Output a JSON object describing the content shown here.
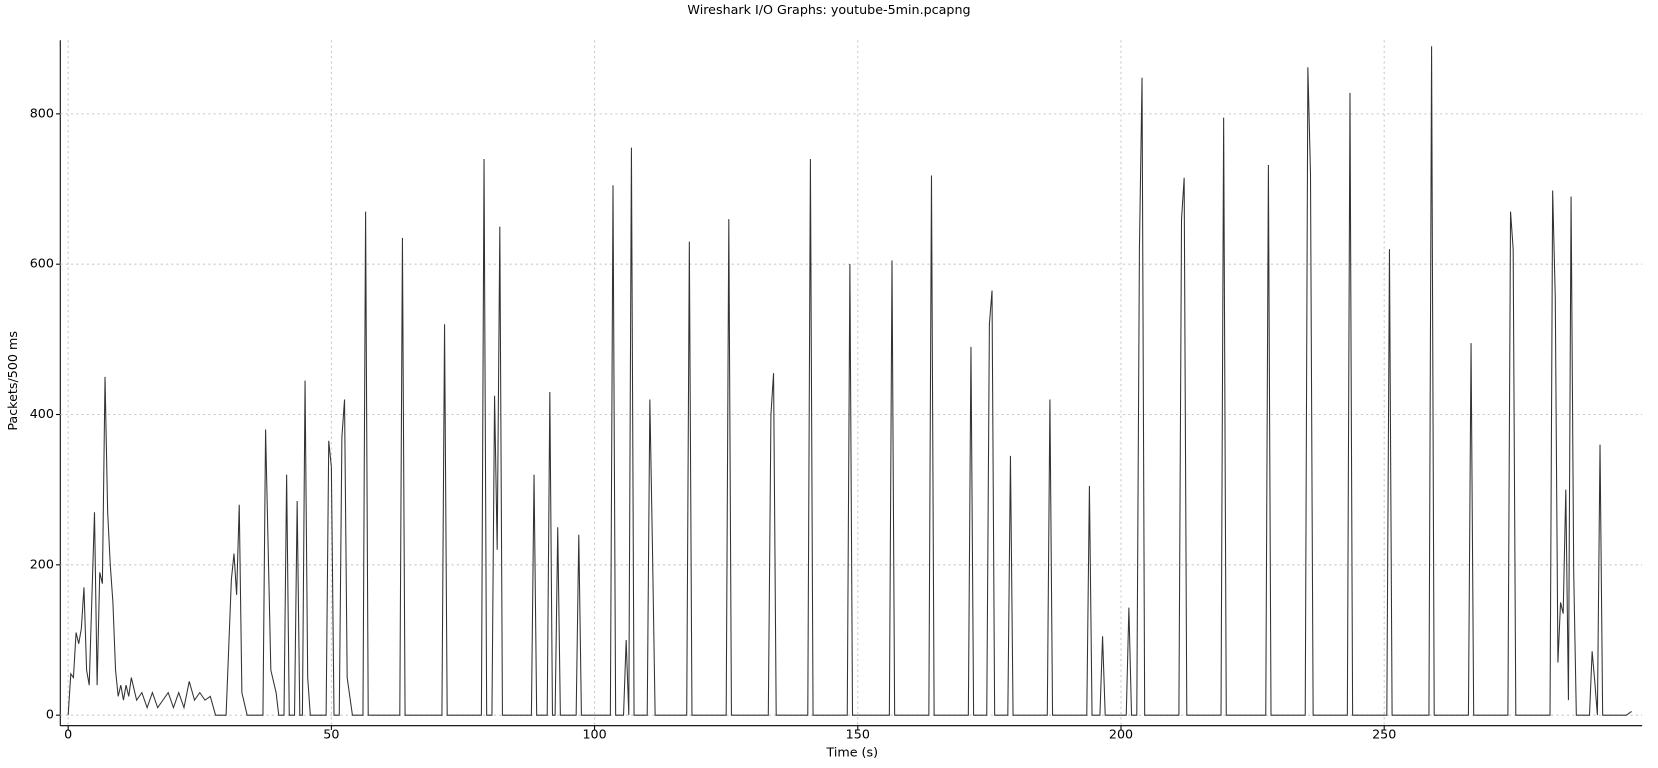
{
  "chart_data": {
    "type": "line",
    "title": "Wireshark I/O Graphs: youtube-5min.pcapng",
    "x_label": "Time (s)",
    "y_label": "Packets/500 ms",
    "color": "#333333",
    "grid": true,
    "xlim": [
      -1.5,
      299
    ],
    "ylim": [
      -14,
      898
    ],
    "xticks": [
      0,
      50,
      100,
      150,
      200,
      250
    ],
    "yticks": [
      0,
      200,
      400,
      600,
      800
    ],
    "x": [
      0,
      0.5,
      1,
      1.5,
      2,
      2.5,
      3,
      3.5,
      4,
      5,
      5.5,
      6,
      6.5,
      7,
      7.5,
      8,
      8.5,
      9,
      9.5,
      10,
      10.5,
      11,
      11.5,
      12,
      13,
      14,
      15,
      16,
      17,
      18,
      19,
      20,
      21,
      22,
      23,
      24,
      25,
      26,
      27,
      28,
      30,
      31,
      31.5,
      32,
      32.5,
      33,
      34,
      37,
      37.5,
      38.5,
      39.5,
      40,
      41,
      41.5,
      42,
      43,
      43.5,
      44,
      44.5,
      45,
      45.5,
      46,
      49,
      49.5,
      50,
      50.5,
      51.5,
      52,
      52.5,
      53,
      54,
      56,
      56.5,
      57,
      63,
      63.5,
      64,
      71,
      71.5,
      72,
      78.5,
      79,
      79.5,
      80.5,
      81,
      81.5,
      82,
      82.5,
      88,
      88.5,
      89,
      91,
      91.5,
      92,
      92.5,
      93,
      93.5,
      96.5,
      97,
      97.5,
      103,
      103.5,
      104,
      105.5,
      106,
      106.5,
      107,
      107.5,
      110,
      110.5,
      111,
      111.5,
      117.5,
      118,
      118.5,
      125,
      125.5,
      126,
      133,
      133.5,
      134,
      134.5,
      140.5,
      141,
      141.5,
      148,
      148.5,
      149,
      156,
      156.5,
      157,
      163.5,
      164,
      164.5,
      171,
      171.5,
      172,
      174.5,
      175,
      175.5,
      176,
      178.5,
      179,
      179.5,
      186,
      186.5,
      187,
      193.5,
      194,
      194.5,
      196,
      196.5,
      197,
      201,
      201.5,
      202,
      203,
      203.5,
      204,
      204.5,
      211,
      211.5,
      212,
      212.5,
      219,
      219.5,
      220,
      227.5,
      228,
      228.5,
      235,
      235.5,
      236,
      236.5,
      243,
      243.5,
      244,
      250.5,
      251,
      251.5,
      258.5,
      259,
      259.5,
      266,
      266.5,
      267,
      273.5,
      274,
      274.5,
      275,
      281.5,
      282,
      282.5,
      283,
      283.5,
      284,
      284.5,
      285,
      285.5,
      286,
      286.5,
      289,
      289.5,
      290,
      290.5,
      291,
      291.5,
      296,
      297
    ],
    "values": [
      0,
      55,
      50,
      110,
      95,
      115,
      170,
      60,
      40,
      270,
      40,
      190,
      175,
      450,
      270,
      200,
      150,
      60,
      25,
      40,
      20,
      40,
      25,
      50,
      20,
      30,
      10,
      30,
      10,
      20,
      30,
      10,
      30,
      10,
      45,
      20,
      30,
      20,
      25,
      0,
      0,
      180,
      215,
      160,
      280,
      30,
      0,
      0,
      380,
      60,
      30,
      0,
      0,
      320,
      0,
      0,
      285,
      0,
      0,
      445,
      50,
      0,
      0,
      365,
      330,
      0,
      0,
      370,
      420,
      50,
      0,
      0,
      670,
      0,
      0,
      635,
      0,
      0,
      520,
      0,
      0,
      740,
      0,
      0,
      425,
      220,
      650,
      0,
      0,
      320,
      0,
      0,
      430,
      0,
      0,
      250,
      0,
      0,
      240,
      0,
      0,
      705,
      0,
      0,
      100,
      0,
      755,
      0,
      0,
      420,
      220,
      0,
      0,
      630,
      0,
      0,
      660,
      0,
      0,
      400,
      455,
      0,
      0,
      740,
      0,
      0,
      600,
      0,
      0,
      605,
      0,
      0,
      718,
      0,
      0,
      490,
      0,
      0,
      520,
      565,
      0,
      0,
      345,
      0,
      0,
      420,
      0,
      0,
      305,
      0,
      0,
      105,
      0,
      0,
      143,
      0,
      0,
      620,
      848,
      0,
      0,
      660,
      715,
      0,
      0,
      795,
      0,
      0,
      732,
      0,
      0,
      862,
      720,
      0,
      0,
      828,
      0,
      0,
      620,
      0,
      0,
      890,
      0,
      0,
      495,
      0,
      0,
      670,
      620,
      0,
      0,
      698,
      555,
      70,
      150,
      135,
      300,
      20,
      690,
      190,
      0,
      0,
      85,
      45,
      0,
      360,
      0,
      0,
      5
    ]
  }
}
